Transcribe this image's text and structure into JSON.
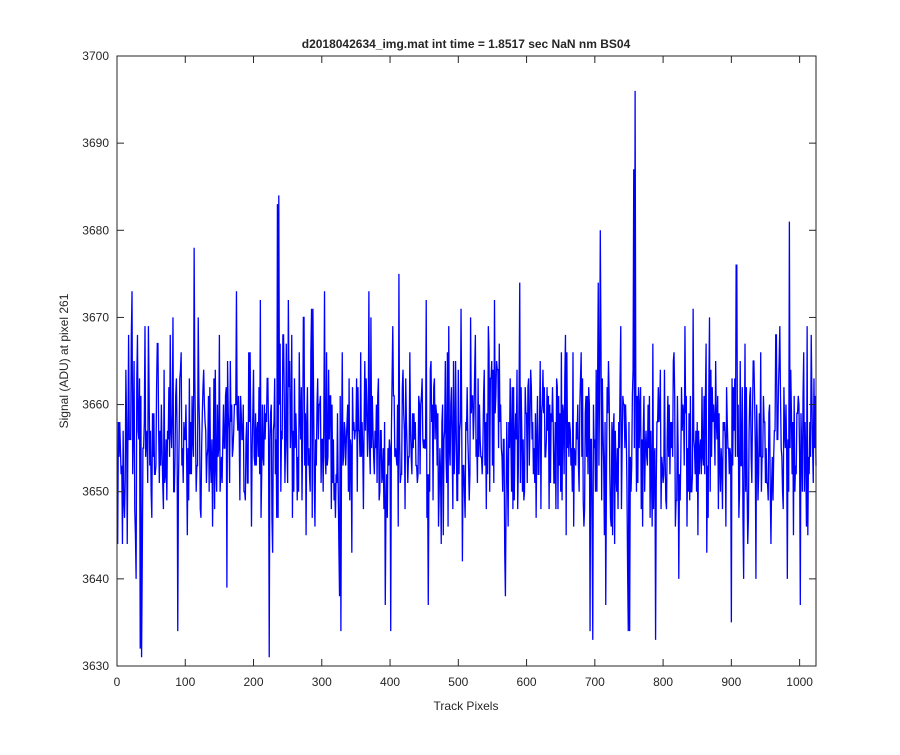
{
  "chart_data": {
    "type": "line",
    "title": "d2018042634_img.mat int time = 1.8517 sec  NaN nm BS04",
    "xlabel": "Track Pixels",
    "ylabel": "Signal (ADU) at pixel 261",
    "xlim": [
      0,
      1024
    ],
    "ylim": [
      3630,
      3700
    ],
    "xticks": [
      0,
      100,
      200,
      300,
      400,
      500,
      600,
      700,
      800,
      900,
      1000
    ],
    "yticks": [
      3630,
      3640,
      3650,
      3660,
      3670,
      3680,
      3690,
      3700
    ],
    "grid": false,
    "legend": "none",
    "series": [
      {
        "color": "#0000ff",
        "noise": {
          "count": 1024,
          "mean": 3656,
          "sd": 6,
          "min": 3631,
          "max": 3696,
          "seed": 261
        },
        "features": [
          {
            "x": 16,
            "y": 3668
          },
          {
            "x": 21,
            "y": 3673
          },
          {
            "x": 27,
            "y": 3640
          },
          {
            "x": 33,
            "y": 3632
          },
          {
            "x": 35,
            "y": 3631
          },
          {
            "x": 40,
            "y": 3669
          },
          {
            "x": 77,
            "y": 3668
          },
          {
            "x": 88,
            "y": 3634
          },
          {
            "x": 112,
            "y": 3678
          },
          {
            "x": 118,
            "y": 3670
          },
          {
            "x": 149,
            "y": 3668
          },
          {
            "x": 174,
            "y": 3673
          },
          {
            "x": 222,
            "y": 3631
          },
          {
            "x": 234,
            "y": 3683
          },
          {
            "x": 236,
            "y": 3684
          },
          {
            "x": 250,
            "y": 3672
          },
          {
            "x": 303,
            "y": 3673
          },
          {
            "x": 325,
            "y": 3638
          },
          {
            "x": 327,
            "y": 3634
          },
          {
            "x": 371,
            "y": 3670
          },
          {
            "x": 392,
            "y": 3637
          },
          {
            "x": 400,
            "y": 3634
          },
          {
            "x": 412,
            "y": 3675
          },
          {
            "x": 452,
            "y": 3672
          },
          {
            "x": 503,
            "y": 3671
          },
          {
            "x": 568,
            "y": 3638
          },
          {
            "x": 692,
            "y": 3634
          },
          {
            "x": 696,
            "y": 3633
          },
          {
            "x": 704,
            "y": 3674
          },
          {
            "x": 707,
            "y": 3680
          },
          {
            "x": 748,
            "y": 3634
          },
          {
            "x": 750,
            "y": 3634
          },
          {
            "x": 756,
            "y": 3687
          },
          {
            "x": 758,
            "y": 3696
          },
          {
            "x": 788,
            "y": 3633
          },
          {
            "x": 899,
            "y": 3635
          },
          {
            "x": 906,
            "y": 3676
          },
          {
            "x": 907,
            "y": 3676
          },
          {
            "x": 984,
            "y": 3681
          },
          {
            "x": 1000,
            "y": 3637
          }
        ]
      }
    ]
  }
}
